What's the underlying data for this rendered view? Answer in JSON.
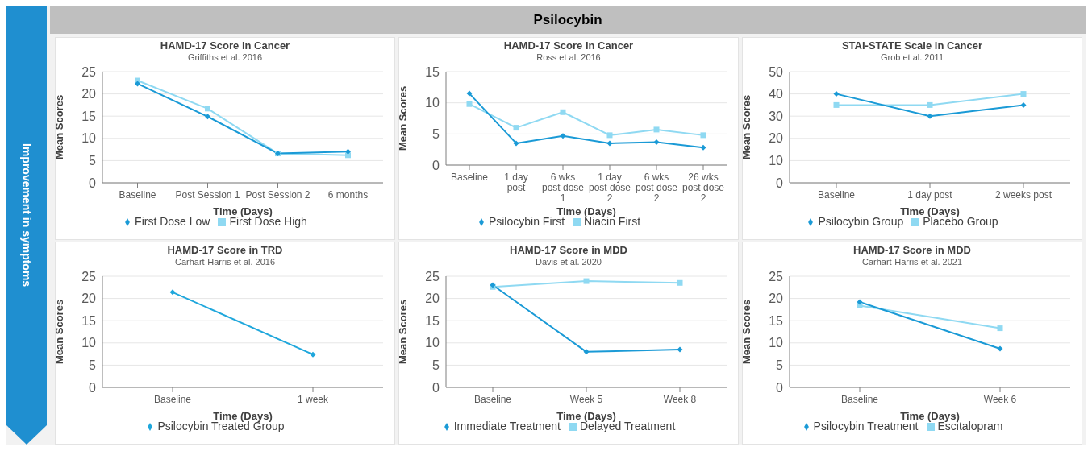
{
  "chart_data": [
    {
      "type": "line",
      "title": "HAMD-17 Score in Cancer",
      "subtitle": "Griffiths et al. 2016",
      "xlabel": "Time (Days)",
      "ylabel": "Mean Scores",
      "categories": [
        "Baseline",
        "Post Session 1",
        "Post Session 2",
        "6 months"
      ],
      "series": [
        {
          "name": "First Dose Low",
          "color": "#1a9ad6",
          "marker": "diamond",
          "values": [
            22.3,
            14.9,
            6.6,
            7.0
          ]
        },
        {
          "name": "First Dose High",
          "color": "#8fd9f2",
          "marker": "square",
          "values": [
            23.0,
            16.7,
            6.6,
            6.2
          ]
        }
      ],
      "ylim": [
        0,
        25
      ],
      "yticks": [
        0,
        5,
        10,
        15,
        20,
        25
      ],
      "grid": "y",
      "legend": "bottom"
    },
    {
      "type": "line",
      "title": "HAMD-17 Score in Cancer",
      "subtitle": "Ross et al. 2016",
      "xlabel": "Time (Days)",
      "ylabel": "Mean Scores",
      "categories": [
        "Baseline",
        "1 day post",
        "6 wks post dose 1",
        "1 day post dose 2",
        "6 wks post dose 2",
        "26 wks post dose 2"
      ],
      "series": [
        {
          "name": "Psilocybin First",
          "color": "#1a9ad6",
          "marker": "diamond",
          "values": [
            11.5,
            3.5,
            4.7,
            3.5,
            3.7,
            2.8
          ]
        },
        {
          "name": "Niacin First",
          "color": "#8fd9f2",
          "marker": "square",
          "values": [
            9.8,
            6.0,
            8.5,
            4.8,
            5.7,
            4.8
          ]
        }
      ],
      "ylim": [
        0,
        15
      ],
      "yticks": [
        0,
        5,
        10,
        15
      ],
      "grid": "y",
      "legend": "bottom"
    },
    {
      "type": "line",
      "title": "STAI-STATE Scale in Cancer",
      "subtitle": "Grob et al. 2011",
      "xlabel": "Time (Days)",
      "ylabel": "Mean Scores",
      "categories": [
        "Baseline",
        "1 day post",
        "2 weeks post"
      ],
      "series": [
        {
          "name": "Psilocybin Group",
          "color": "#1a9ad6",
          "marker": "diamond",
          "values": [
            40,
            30,
            35
          ]
        },
        {
          "name": "Placebo Group",
          "color": "#8fd9f2",
          "marker": "square",
          "values": [
            35,
            35,
            40
          ]
        }
      ],
      "ylim": [
        0,
        50
      ],
      "yticks": [
        0,
        10,
        20,
        30,
        40,
        50
      ],
      "grid": "y",
      "legend": "bottom"
    },
    {
      "type": "line",
      "title": "HAMD-17 Score in TRD",
      "subtitle": "Carhart-Harris et al. 2016",
      "xlabel": "Time (Days)",
      "ylabel": "Mean Scores",
      "categories": [
        "Baseline",
        "1 week"
      ],
      "series": [
        {
          "name": "Psilocybin Treated Group",
          "color": "#1fa7dc",
          "marker": "diamond",
          "values": [
            21.4,
            7.4
          ]
        }
      ],
      "ylim": [
        0,
        25
      ],
      "yticks": [
        0,
        5,
        10,
        15,
        20,
        25
      ],
      "grid": "y",
      "legend": "bottom"
    },
    {
      "type": "line",
      "title": "HAMD-17 Score in MDD",
      "subtitle": "Davis et al. 2020",
      "xlabel": "Time (Days)",
      "ylabel": "Mean Scores",
      "categories": [
        "Baseline",
        "Week 5",
        "Week 8"
      ],
      "series": [
        {
          "name": "Immediate Treatment",
          "color": "#1a9ad6",
          "marker": "diamond",
          "values": [
            23.0,
            8.0,
            8.5
          ]
        },
        {
          "name": "Delayed Treatment",
          "color": "#8fd9f2",
          "marker": "square",
          "values": [
            22.6,
            23.9,
            23.5
          ]
        }
      ],
      "ylim": [
        0,
        25
      ],
      "yticks": [
        0,
        5,
        10,
        15,
        20,
        25
      ],
      "grid": "y",
      "legend": "bottom"
    },
    {
      "type": "line",
      "title": "HAMD-17 Score in MDD",
      "subtitle": "Carhart-Harris et al. 2021",
      "xlabel": "Time (Days)",
      "ylabel": "Mean Scores",
      "categories": [
        "Baseline",
        "Week 6"
      ],
      "series": [
        {
          "name": "Psilocybin Treatment",
          "color": "#1a9ad6",
          "marker": "diamond",
          "values": [
            19.2,
            8.7
          ]
        },
        {
          "name": "Escitalopram",
          "color": "#8fd9f2",
          "marker": "square",
          "values": [
            18.4,
            13.3
          ]
        }
      ],
      "ylim": [
        0,
        25
      ],
      "yticks": [
        0,
        5,
        10,
        15,
        20,
        25
      ],
      "grid": "y",
      "legend": "bottom"
    },
    {
      "type": "other",
      "title": "Psilocybin",
      "annotations": [
        "Improvement in symptoms"
      ]
    }
  ]
}
